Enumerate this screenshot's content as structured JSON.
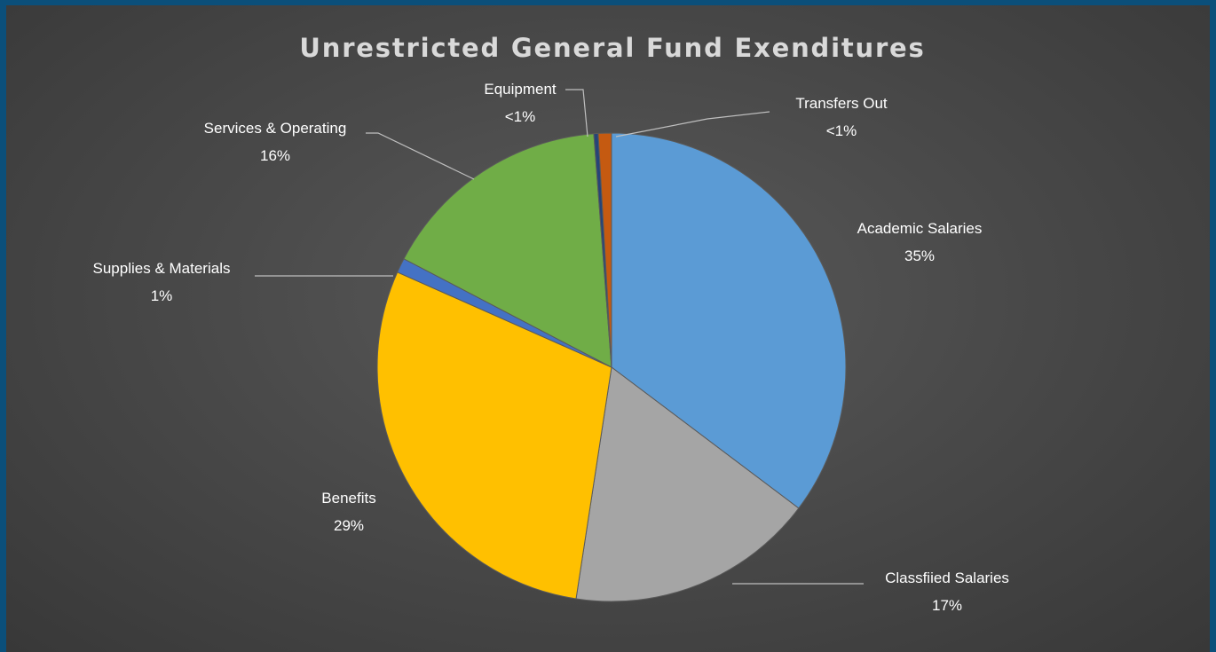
{
  "chart_data": {
    "type": "pie",
    "title": "Unrestricted General Fund Exenditures",
    "slices": [
      {
        "label": "Academic Salaries",
        "value": 35,
        "display": "35%",
        "color": "#5b9bd5"
      },
      {
        "label": "Classfiied Salaries",
        "value": 17,
        "display": "17%",
        "color": "#a5a5a5"
      },
      {
        "label": "Benefits",
        "value": 29,
        "display": "29%",
        "color": "#ffc000"
      },
      {
        "label": "Supplies & Materials",
        "value": 1,
        "display": "1%",
        "color": "#4472c4"
      },
      {
        "label": "Services & Operating",
        "value": 16,
        "display": "16%",
        "color": "#70ad47"
      },
      {
        "label": "Equipment",
        "value": 0.3,
        "display": "<1%",
        "color": "#264478"
      },
      {
        "label": "Transfers Out",
        "value": 0.9,
        "display": "<1%",
        "color": "#c55a11"
      }
    ],
    "start_angle_deg": 0,
    "direction": "clockwise",
    "legend": "none"
  }
}
